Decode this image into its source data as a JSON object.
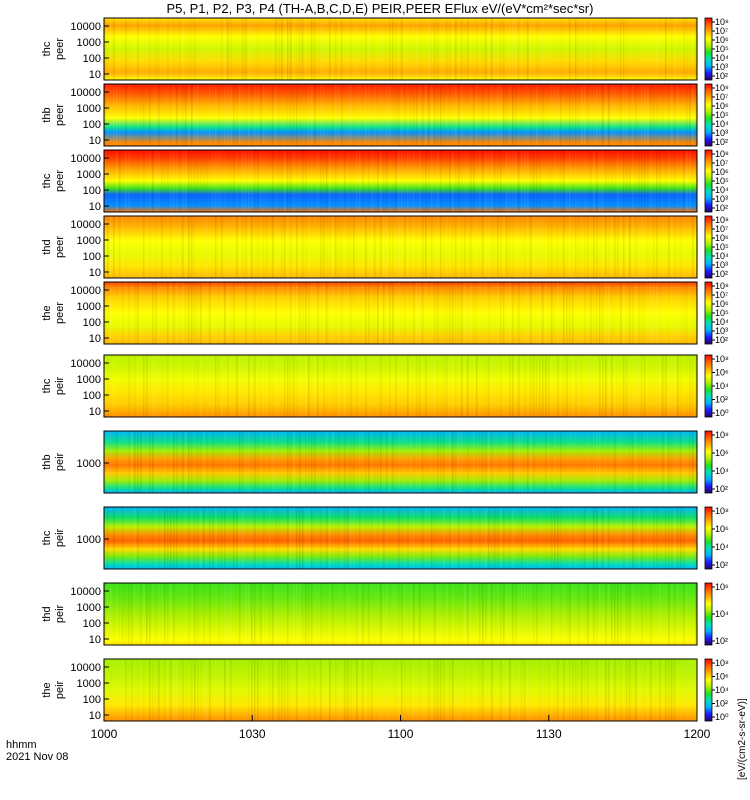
{
  "title": "P5, P1, P2, P3, P4 (TH-A,B,C,D,E) PEIR,PEER EFlux eV/(eV*cm²*sec*sr)",
  "x_axis": {
    "label_line1": "hhmm",
    "label_line2": "2021 Nov 08",
    "tick_labels": [
      "1000",
      "1030",
      "1100",
      "1130",
      "1200"
    ]
  },
  "colorbar_unit_label": "[eV/(cm2-s-sr-eV)]",
  "colors": {
    "colormap": [
      "#2a0066",
      "#1a1aff",
      "#00b0ff",
      "#00e0c0",
      "#20e020",
      "#b0f000",
      "#ffff00",
      "#ffb000",
      "#ff6000",
      "#ff0000"
    ]
  },
  "chart_data": {
    "type": "heatmap",
    "x_unit": "time (hhmm UT)",
    "x_range": [
      "1000",
      "1200"
    ],
    "panels": [
      {
        "probe": "thc",
        "species": "peer",
        "ylabel_top": "thc",
        "ylabel_bottom": "peer",
        "y_ticks": [
          "10",
          "100",
          "1000",
          "10000"
        ],
        "cb_ticks": [
          "10⁸",
          "10⁷",
          "10⁶",
          "10⁵",
          "10⁴",
          "10³",
          "10²"
        ],
        "cb_range": [
          2,
          8
        ],
        "bands": [
          [
            0.0,
            6.2
          ],
          [
            0.12,
            6.8
          ],
          [
            0.3,
            6.0
          ],
          [
            0.5,
            5.6
          ],
          [
            0.7,
            6.3
          ],
          [
            0.88,
            6.7
          ],
          [
            1.0,
            6.0
          ]
        ]
      },
      {
        "probe": "thb",
        "species": "peer",
        "ylabel_top": "thb",
        "ylabel_bottom": "peer",
        "y_ticks": [
          "10",
          "100",
          "1000",
          "10000"
        ],
        "cb_ticks": [
          "10⁸",
          "10⁷",
          "10⁶",
          "10⁵",
          "10⁴",
          "10³",
          "10²"
        ],
        "cb_range": [
          2,
          8
        ],
        "bands": [
          [
            0.0,
            7.8
          ],
          [
            0.15,
            7.4
          ],
          [
            0.35,
            6.6
          ],
          [
            0.55,
            6.0
          ],
          [
            0.7,
            4.2
          ],
          [
            0.78,
            3.2
          ],
          [
            0.95,
            7.0
          ],
          [
            1.0,
            7.0
          ]
        ]
      },
      {
        "probe": "thc",
        "species": "peer",
        "ylabel_top": "thc",
        "ylabel_bottom": "peer",
        "y_ticks": [
          "10",
          "100",
          "1000",
          "10000"
        ],
        "cb_ticks": [
          "10⁸",
          "10⁷",
          "10⁶",
          "10⁵",
          "10⁴",
          "10³",
          "10²"
        ],
        "cb_range": [
          2,
          8
        ],
        "bands": [
          [
            0.0,
            7.9
          ],
          [
            0.12,
            7.6
          ],
          [
            0.3,
            6.8
          ],
          [
            0.5,
            6.0
          ],
          [
            0.62,
            4.8
          ],
          [
            0.72,
            3.0
          ],
          [
            0.9,
            3.2
          ],
          [
            1.0,
            7.2
          ]
        ]
      },
      {
        "probe": "thd",
        "species": "peer",
        "ylabel_top": "thd",
        "ylabel_bottom": "peer",
        "y_ticks": [
          "10",
          "100",
          "1000",
          "10000"
        ],
        "cb_ticks": [
          "10⁸",
          "10⁷",
          "10⁶",
          "10⁵",
          "10⁴",
          "10³",
          "10²"
        ],
        "cb_range": [
          2,
          8
        ],
        "bands": [
          [
            0.0,
            7.0
          ],
          [
            0.15,
            6.7
          ],
          [
            0.4,
            6.0
          ],
          [
            0.6,
            5.8
          ],
          [
            0.8,
            6.2
          ],
          [
            1.0,
            6.6
          ]
        ]
      },
      {
        "probe": "the",
        "species": "peer",
        "ylabel_top": "the",
        "ylabel_bottom": "peer",
        "y_ticks": [
          "10",
          "100",
          "1000",
          "10000"
        ],
        "cb_ticks": [
          "10⁸",
          "10⁷",
          "10⁶",
          "10⁵",
          "10⁴",
          "10³",
          "10²"
        ],
        "cb_range": [
          2,
          8
        ],
        "bands": [
          [
            0.0,
            7.6
          ],
          [
            0.08,
            7.0
          ],
          [
            0.25,
            6.4
          ],
          [
            0.5,
            6.0
          ],
          [
            0.7,
            5.8
          ],
          [
            0.88,
            6.4
          ],
          [
            1.0,
            6.6
          ]
        ]
      },
      {
        "probe": "thc",
        "species": "peir",
        "ylabel_top": "thc",
        "ylabel_bottom": "peir",
        "y_ticks": [
          "10",
          "100",
          "1000",
          "10000"
        ],
        "cb_ticks": [
          "10⁸",
          "10⁶",
          "10⁴",
          "10²",
          "10⁰"
        ],
        "cb_range": [
          0,
          8
        ],
        "bands": [
          [
            0.0,
            4.6
          ],
          [
            0.2,
            4.8
          ],
          [
            0.4,
            5.2
          ],
          [
            0.6,
            5.6
          ],
          [
            0.8,
            5.9
          ],
          [
            0.92,
            6.3
          ],
          [
            1.0,
            6.6
          ]
        ]
      },
      {
        "probe": "thb",
        "species": "peir",
        "ylabel_top": "thb",
        "ylabel_bottom": "peir",
        "y_ticks": [
          "1000"
        ],
        "cb_ticks": [
          "10⁸",
          "10⁶",
          "10⁴",
          "10²"
        ],
        "cb_range": [
          1,
          8
        ],
        "bands": [
          [
            0.0,
            2.6
          ],
          [
            0.18,
            3.6
          ],
          [
            0.32,
            4.8
          ],
          [
            0.45,
            6.6
          ],
          [
            0.55,
            7.0
          ],
          [
            0.68,
            6.2
          ],
          [
            0.8,
            4.8
          ],
          [
            0.92,
            3.6
          ],
          [
            1.0,
            2.6
          ]
        ]
      },
      {
        "probe": "thc",
        "species": "peir",
        "ylabel_top": "thc",
        "ylabel_bottom": "peir",
        "y_ticks": [
          "1000"
        ],
        "cb_ticks": [
          "10⁸",
          "10⁶",
          "10⁴",
          "10²"
        ],
        "cb_range": [
          1,
          8
        ],
        "bands": [
          [
            0.0,
            2.6
          ],
          [
            0.18,
            3.8
          ],
          [
            0.32,
            5.0
          ],
          [
            0.45,
            6.8
          ],
          [
            0.55,
            7.2
          ],
          [
            0.68,
            6.0
          ],
          [
            0.8,
            4.6
          ],
          [
            0.92,
            3.4
          ],
          [
            1.0,
            2.6
          ]
        ]
      },
      {
        "probe": "thd",
        "species": "peir",
        "ylabel_top": "thd",
        "ylabel_bottom": "peir",
        "y_ticks": [
          "10",
          "100",
          "1000",
          "10000"
        ],
        "cb_ticks": [
          "10⁶",
          "10⁴",
          "10²"
        ],
        "cb_range": [
          1,
          7
        ],
        "bands": [
          [
            0.0,
            3.8
          ],
          [
            0.25,
            4.0
          ],
          [
            0.5,
            4.3
          ],
          [
            0.75,
            4.7
          ],
          [
            0.92,
            5.0
          ],
          [
            1.0,
            5.2
          ]
        ]
      },
      {
        "probe": "the",
        "species": "peir",
        "ylabel_top": "the",
        "ylabel_bottom": "peir",
        "y_ticks": [
          "10",
          "100",
          "1000",
          "10000"
        ],
        "cb_ticks": [
          "10⁸",
          "10⁶",
          "10⁴",
          "10²",
          "10⁰"
        ],
        "cb_range": [
          0,
          8
        ],
        "bands": [
          [
            0.0,
            4.4
          ],
          [
            0.25,
            4.6
          ],
          [
            0.5,
            5.0
          ],
          [
            0.75,
            5.6
          ],
          [
            0.9,
            6.2
          ],
          [
            1.0,
            6.6
          ]
        ]
      }
    ]
  }
}
